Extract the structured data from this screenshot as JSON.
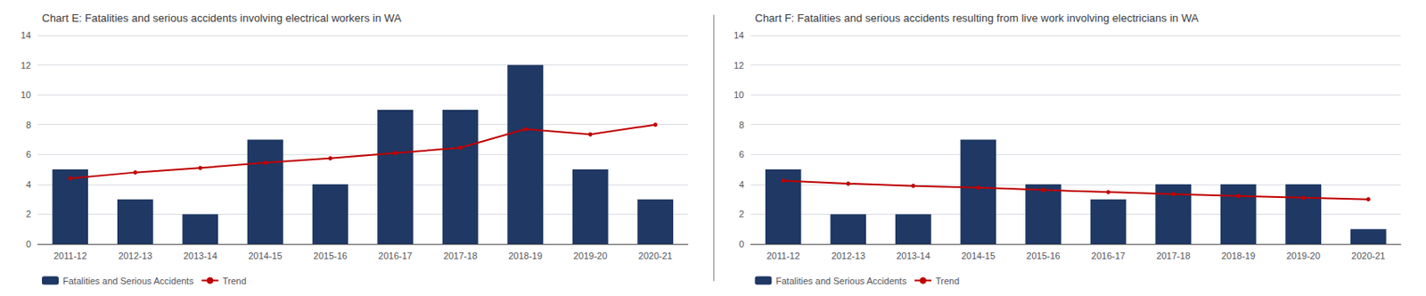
{
  "chart_data": [
    {
      "type": "bar",
      "title": "Chart E: Fatalities and serious accidents involving electrical workers in WA",
      "categories": [
        "2011-12",
        "2012-13",
        "2013-14",
        "2014-15",
        "2015-16",
        "2016-17",
        "2017-18",
        "2018-19",
        "2019-20",
        "2020-21"
      ],
      "series": [
        {
          "name": "Fatalities and Serious Accidents",
          "type": "bar",
          "color": "#1F3864",
          "values": [
            5,
            3,
            2,
            7,
            4,
            9,
            9,
            12,
            5,
            3
          ]
        },
        {
          "name": "Trend",
          "type": "line",
          "color": "#C00000",
          "marker": "circle",
          "values": [
            4.4,
            4.8,
            5.1,
            5.45,
            5.75,
            6.1,
            6.45,
            7.7,
            7.35,
            8.0
          ]
        }
      ],
      "ylim": [
        0,
        14
      ],
      "yticks": [
        0,
        2,
        4,
        6,
        8,
        10,
        12,
        14
      ],
      "grid": true,
      "legend": "lower left"
    },
    {
      "type": "bar",
      "title": "Chart F: Fatalities and serious accidents resulting from live work involving electricians in WA",
      "categories": [
        "2011-12",
        "2012-13",
        "2013-14",
        "2014-15",
        "2015-16",
        "2016-17",
        "2017-18",
        "2018-19",
        "2019-20",
        "2020-21"
      ],
      "series": [
        {
          "name": "Fatalities and Serious Accidents",
          "type": "bar",
          "color": "#1F3864",
          "values": [
            5,
            2,
            2,
            7,
            4,
            3,
            4,
            4,
            4,
            1
          ]
        },
        {
          "name": "Trend",
          "type": "line",
          "color": "#C00000",
          "marker": "circle",
          "values": [
            4.25,
            4.05,
            3.9,
            3.78,
            3.62,
            3.48,
            3.35,
            3.22,
            3.1,
            3.0
          ]
        }
      ],
      "ylim": [
        0,
        14
      ],
      "yticks": [
        0,
        2,
        4,
        6,
        8,
        10,
        12,
        14
      ],
      "grid": true,
      "legend": "lower left"
    }
  ]
}
